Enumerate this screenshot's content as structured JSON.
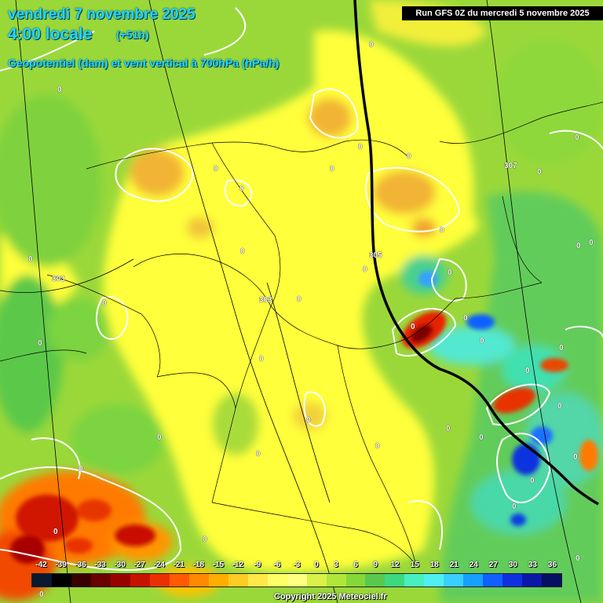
{
  "header": {
    "date": "vendredi 7 novembre 2025",
    "hour": "4:00 locale",
    "lead": "(+51h)",
    "title": "Geopotentiel (dam) et vent vertical à 700hPa (hPa/h)",
    "run": "Run GFS 0Z du mercredi 5 novembre 2025"
  },
  "map": {
    "geopotential_labels": [
      "303",
      "305",
      "307",
      "303"
    ],
    "zero_labels": [
      "0",
      "0",
      "0",
      "0",
      "0",
      "0",
      "0",
      "0",
      "0",
      "0",
      "0",
      "0",
      "0",
      "0",
      "0",
      "0",
      "0",
      "0",
      "0",
      "0",
      "0",
      "0",
      "0",
      "0",
      "0",
      "0",
      "0",
      "0",
      "0",
      "0",
      "0",
      "0",
      "0",
      "0",
      "0",
      "0",
      "0",
      "0",
      "0",
      "0"
    ]
  },
  "legend": {
    "ticks": [
      "-42",
      "-39",
      "-36",
      "-33",
      "-30",
      "-27",
      "-24",
      "-21",
      "-18",
      "-15",
      "-12",
      "-9",
      "-6",
      "-3",
      "0",
      "3",
      "6",
      "9",
      "12",
      "15",
      "18",
      "21",
      "24",
      "27",
      "30",
      "33",
      "36"
    ],
    "colors": [
      "#071a30",
      "#000000",
      "#3a0000",
      "#6a0000",
      "#990000",
      "#c81200",
      "#e83000",
      "#ff5a00",
      "#ff8a00",
      "#ffae00",
      "#ffcc22",
      "#ffe84a",
      "#ffff66",
      "#ffff80",
      "#d8f24a",
      "#b0e63a",
      "#84d838",
      "#5ac850",
      "#3ed880",
      "#48f0c0",
      "#50f0f0",
      "#38d0ff",
      "#18a0ff",
      "#1060ff",
      "#1030e0",
      "#0a18a8",
      "#061060"
    ],
    "copyright": "Copyright 2025 Meteociel.fr"
  },
  "colors": {
    "title_text": "#1fd8ff",
    "background_field": "#9ad83a",
    "neutral_zone": "#fff200",
    "contour": "#ffffff",
    "front_line": "#000000"
  }
}
